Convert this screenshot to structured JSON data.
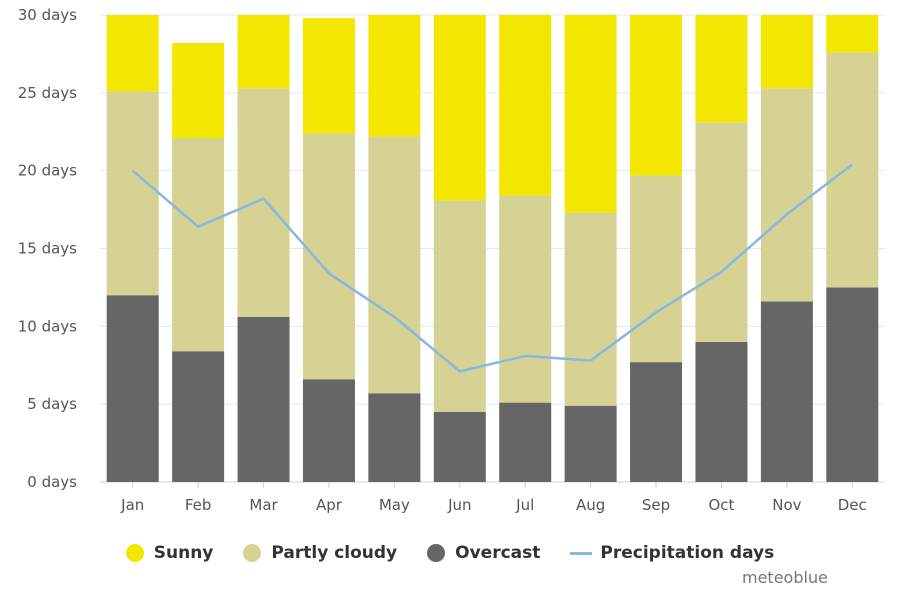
{
  "chart_data": {
    "type": "bar",
    "stacked": true,
    "categories": [
      "Jan",
      "Feb",
      "Mar",
      "Apr",
      "May",
      "Jun",
      "Jul",
      "Aug",
      "Sep",
      "Oct",
      "Nov",
      "Dec"
    ],
    "y_ticks": [
      "0 days",
      "5 days",
      "10 days",
      "15 days",
      "20 days",
      "25 days",
      "30 days"
    ],
    "ylim": [
      0,
      30
    ],
    "series": [
      {
        "name": "Overcast",
        "color": "#666666",
        "type": "bar",
        "values": [
          12.0,
          8.4,
          10.6,
          6.6,
          5.7,
          4.5,
          5.1,
          4.9,
          7.7,
          9.0,
          11.6,
          12.5
        ]
      },
      {
        "name": "Partly cloudy",
        "color": "#d6d293",
        "type": "bar",
        "values": [
          13.1,
          13.7,
          14.7,
          15.8,
          16.5,
          13.6,
          13.3,
          12.4,
          12.0,
          14.1,
          13.7,
          15.1
        ]
      },
      {
        "name": "Sunny",
        "color": "#f3e600",
        "type": "bar",
        "values": [
          5.9,
          6.1,
          5.7,
          7.4,
          8.8,
          12.9,
          12.6,
          13.7,
          10.3,
          7.9,
          5.7,
          3.4
        ]
      },
      {
        "name": "Precipitation days",
        "color": "#88b8e0",
        "type": "line",
        "values": [
          20.0,
          16.4,
          18.2,
          13.4,
          10.6,
          7.1,
          8.1,
          7.8,
          10.9,
          13.5,
          17.2,
          20.4
        ]
      }
    ],
    "grid": true,
    "legend_position": "bottom"
  },
  "legend": {
    "items": [
      {
        "label": "Sunny",
        "color": "#f3e600",
        "marker": "dot"
      },
      {
        "label": "Partly cloudy",
        "color": "#d6d293",
        "marker": "dot"
      },
      {
        "label": "Overcast",
        "color": "#666666",
        "marker": "dot"
      },
      {
        "label": "Precipitation days",
        "color": "#88b8e0",
        "marker": "line"
      }
    ]
  },
  "credit": "meteoblue"
}
